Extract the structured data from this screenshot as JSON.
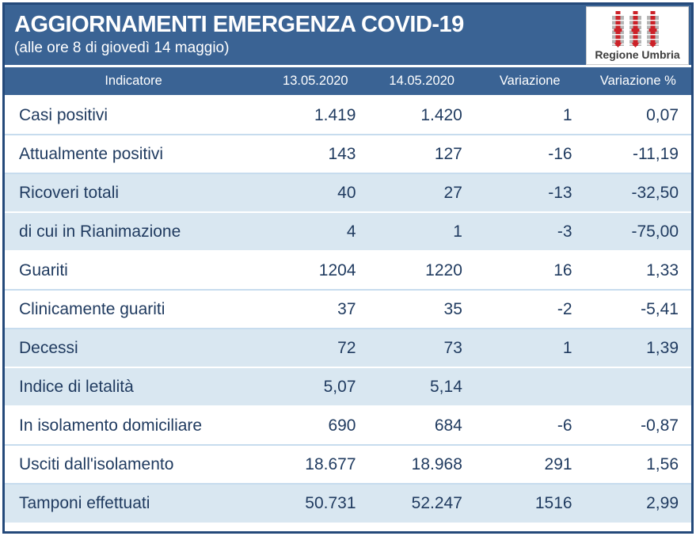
{
  "header": {
    "title": "AGGIORNAMENTI EMERGENZA COVID-19",
    "subtitle": "(alle ore 8 di giovedì 14 maggio)",
    "logo_text": "Regione Umbria"
  },
  "table": {
    "columns": [
      "Indicatore",
      "13.05.2020",
      "14.05.2020",
      "Variazione",
      "Variazione %"
    ],
    "rows": [
      {
        "label": "Casi positivi",
        "values": [
          "1.419",
          "1.420",
          "1",
          "0,07"
        ]
      },
      {
        "label": "Attualmente positivi",
        "values": [
          "143",
          "127",
          "-16",
          "-11,19"
        ]
      },
      {
        "label": "Ricoveri totali",
        "values": [
          "40",
          "27",
          "-13",
          "-32,50"
        ]
      },
      {
        "label": "di cui in Rianimazione",
        "values": [
          "4",
          "1",
          "-3",
          "-75,00"
        ]
      },
      {
        "label": "Guariti",
        "values": [
          "1204",
          "1220",
          "16",
          "1,33"
        ]
      },
      {
        "label": "Clinicamente guariti",
        "values": [
          "37",
          "35",
          "-2",
          "-5,41"
        ]
      },
      {
        "label": "Decessi",
        "values": [
          "72",
          "73",
          "1",
          "1,39"
        ]
      },
      {
        "label": "Indice di letalità",
        "values": [
          "5,07",
          "5,14",
          "",
          ""
        ]
      },
      {
        "label": "In isolamento domiciliare",
        "values": [
          "690",
          "684",
          "-6",
          "-0,87"
        ]
      },
      {
        "label": "Usciti dall'isolamento",
        "values": [
          "18.677",
          "18.968",
          "291",
          "1,56"
        ]
      },
      {
        "label": "Tamponi effettuati",
        "values": [
          "50.731",
          "52.247",
          "1516",
          "2,99"
        ]
      }
    ]
  },
  "colors": {
    "accent": "#3A6394",
    "frame_border": "#24497A",
    "row_alt": "#D9E7F1",
    "text": "#1F3A5F",
    "logo_red": "#CC2128",
    "logo_gray": "#B5B5B5"
  }
}
